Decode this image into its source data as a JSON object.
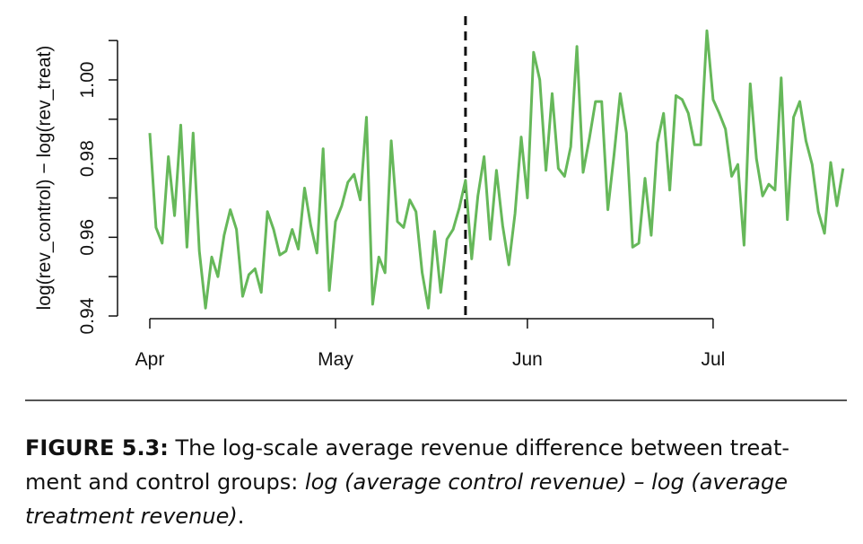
{
  "chart_data": {
    "type": "line",
    "title": "",
    "xlabel": "",
    "ylabel": "log(rev_control) − log(rev_treat)",
    "ylim": [
      0.94,
      1.0
    ],
    "yticks": [
      0.94,
      0.96,
      0.98,
      1.0
    ],
    "ytick_labels": [
      "0.94",
      "0.96",
      "0.98",
      "1.00"
    ],
    "xticks": [
      {
        "label": "Apr",
        "day": 0
      },
      {
        "label": "May",
        "day": 30
      },
      {
        "label": "Jun",
        "day": 61
      },
      {
        "label": "Jul",
        "day": 91
      }
    ],
    "line_color": "#66b85a",
    "vline": {
      "day": 51,
      "style": "dashed",
      "color": "#111111"
    },
    "series": [
      {
        "values": [
          0.9865,
          0.9625,
          0.9585,
          0.9805,
          0.9655,
          0.9885,
          0.9575,
          0.9865,
          0.9565,
          0.942,
          0.955,
          0.95,
          0.9605,
          0.967,
          0.962,
          0.945,
          0.9505,
          0.952,
          0.946,
          0.9665,
          0.962,
          0.9555,
          0.9565,
          0.962,
          0.957,
          0.9725,
          0.963,
          0.956,
          0.9825,
          0.9465,
          0.964,
          0.968,
          0.974,
          0.976,
          0.9695,
          0.9905,
          0.943,
          0.955,
          0.951,
          0.9845,
          0.964,
          0.9625,
          0.9695,
          0.9665,
          0.951,
          0.942,
          0.9615,
          0.946,
          0.9595,
          0.962,
          0.9675,
          0.9745,
          0.9545,
          0.9705,
          0.9805,
          0.9595,
          0.977,
          0.963,
          0.953,
          0.966,
          0.9855,
          0.97,
          1.007,
          1.0,
          0.977,
          0.9965,
          0.9775,
          0.9755,
          0.983,
          1.0085,
          0.9765,
          0.985,
          0.9945,
          0.9945,
          0.967,
          0.981,
          0.9965,
          0.9865,
          0.9575,
          0.9585,
          0.975,
          0.9605,
          0.984,
          0.9915,
          0.972,
          0.996,
          0.995,
          0.9915,
          0.9835,
          0.9835,
          1.0125,
          0.995,
          0.9915,
          0.9875,
          0.9755,
          0.9785,
          0.958,
          0.999,
          0.98,
          0.9705,
          0.9735,
          0.972,
          1.0005,
          0.9645,
          0.9905,
          0.9945,
          0.9845,
          0.9785,
          0.9665,
          0.961,
          0.979,
          0.968,
          0.9775
        ]
      }
    ]
  },
  "caption": {
    "label": "FIGURE 5.3:",
    "text": " The log-scale average revenue difference between treat-ment and control groups: ",
    "italic_text": "log (average control revenue) – log (average treatment revenue)",
    "end_text": "."
  }
}
